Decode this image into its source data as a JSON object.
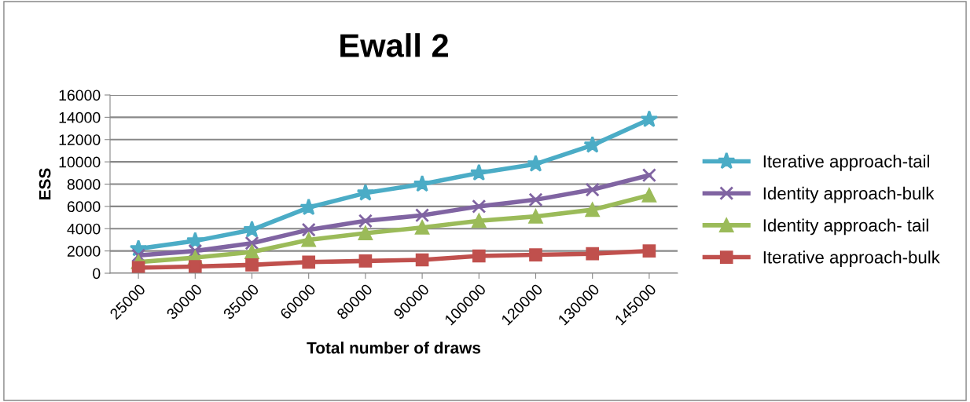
{
  "chart_data": {
    "type": "line",
    "title": "Ewall 2",
    "xlabel": "Total number of draws",
    "ylabel": "ESS",
    "categories": [
      "25000",
      "30000",
      "35000",
      "60000",
      "80000",
      "90000",
      "100000",
      "120000",
      "130000",
      "145000"
    ],
    "series": [
      {
        "name": "Iterative approach-tail",
        "color": "#4bacc6",
        "marker": "star",
        "values": [
          2200,
          2900,
          3900,
          5900,
          7200,
          8000,
          9000,
          9800,
          11500,
          13800
        ]
      },
      {
        "name": "Identity approach-bulk",
        "color": "#8064a2",
        "marker": "cross",
        "values": [
          1600,
          2000,
          2700,
          3900,
          4700,
          5200,
          6000,
          6600,
          7500,
          8800
        ]
      },
      {
        "name": "Identity approach- tail",
        "color": "#9bbb59",
        "marker": "triangle",
        "values": [
          1000,
          1400,
          1900,
          3000,
          3600,
          4100,
          4700,
          5100,
          5700,
          7000
        ]
      },
      {
        "name": "Iterative approach-bulk",
        "color": "#c0504d",
        "marker": "square",
        "values": [
          500,
          600,
          750,
          1000,
          1100,
          1200,
          1550,
          1650,
          1750,
          2000
        ]
      }
    ],
    "ylim": [
      0,
      16000
    ],
    "yticks": [
      0,
      2000,
      4000,
      6000,
      8000,
      10000,
      12000,
      14000,
      16000
    ],
    "grid": "y",
    "legend": "right",
    "line_style": "solid"
  }
}
